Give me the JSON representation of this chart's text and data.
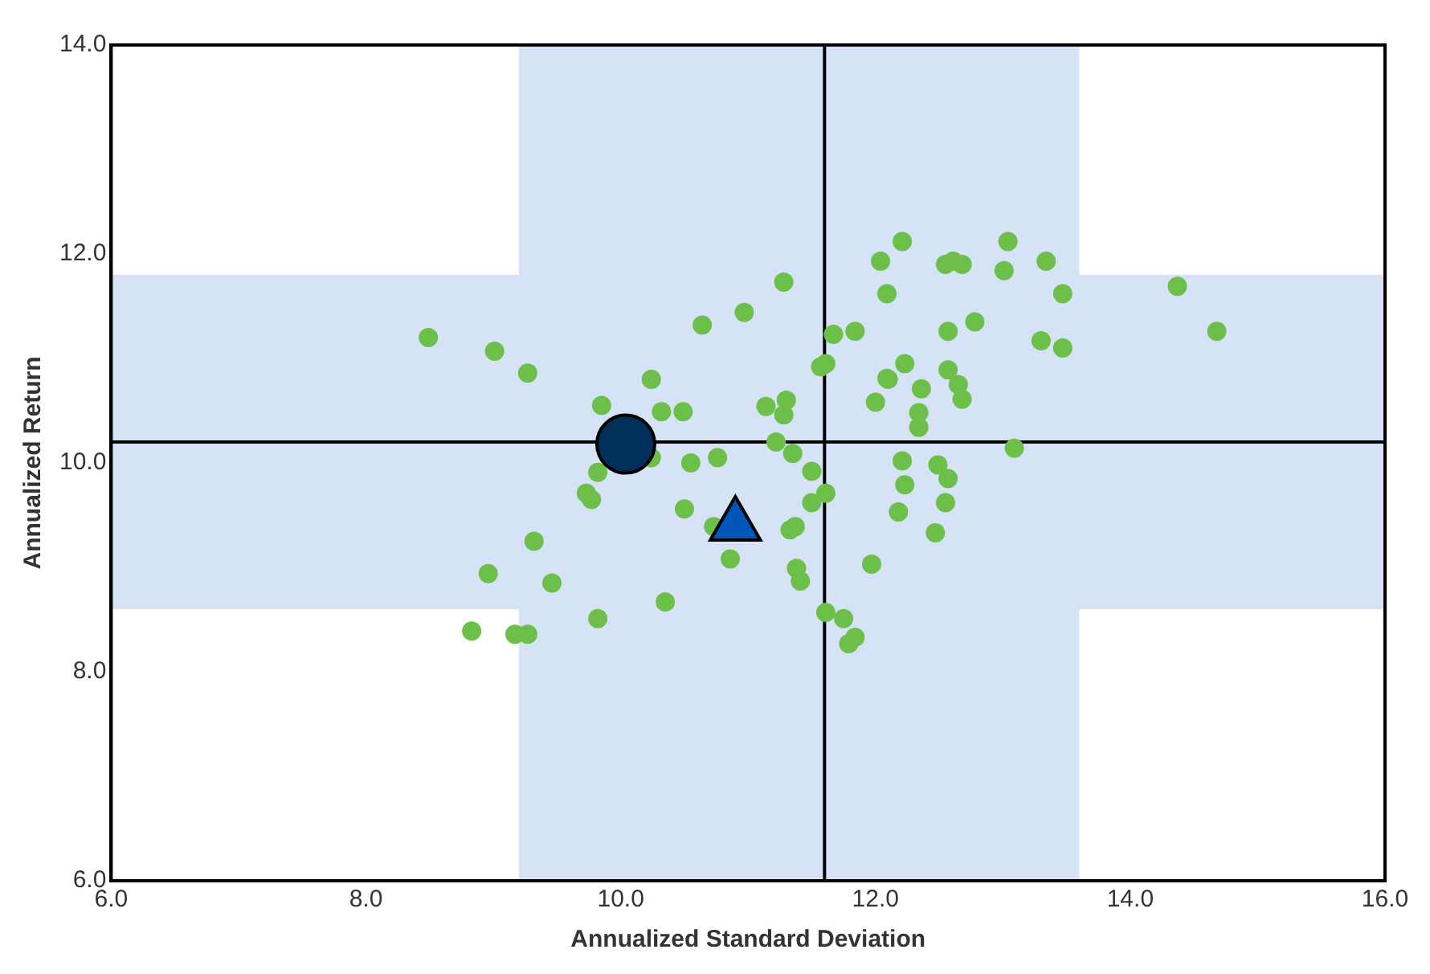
{
  "chart_data": {
    "type": "scatter",
    "xlabel": "Annualized Standard Deviation",
    "ylabel": "Annualized Return",
    "xlim": [
      6,
      16
    ],
    "xticks": [
      {
        "value": 6,
        "label": "6.0"
      },
      {
        "value": 8,
        "label": "8.0"
      },
      {
        "value": 10,
        "label": "10.0"
      },
      {
        "value": 12,
        "label": "12.0"
      },
      {
        "value": 14,
        "label": "14.0"
      },
      {
        "value": 16,
        "label": "16.0"
      }
    ],
    "ylim": [
      6,
      14
    ],
    "yticks": [
      {
        "value": 6,
        "label": "6.0"
      },
      {
        "value": 8,
        "label": "8.0"
      },
      {
        "value": 10,
        "label": "10.0"
      },
      {
        "value": 12,
        "label": "12.0"
      },
      {
        "value": 14,
        "label": "14.0"
      }
    ],
    "grid": false,
    "legend": false,
    "bands": [
      {
        "axis": "x",
        "from": 9.2,
        "to": 13.6,
        "color": "#d6e3f7"
      },
      {
        "axis": "y",
        "from": 8.6,
        "to": 11.8,
        "color": "#d6e3f7"
      }
    ],
    "ref_lines": [
      {
        "axis": "x",
        "value": 11.6,
        "color": "#000000"
      },
      {
        "axis": "y",
        "value": 10.2,
        "color": "#000000"
      }
    ],
    "series": [
      {
        "color": "#6cc04a",
        "marker": "circle",
        "x": [
          8.49,
          9.01,
          9.27,
          9.85,
          10.24,
          10.32,
          10.49,
          10.64,
          10.97,
          11.28,
          11.14,
          11.3,
          11.28,
          10.24,
          9.82,
          9.73,
          9.77,
          10.55,
          10.76,
          10.5,
          9.32,
          8.96,
          9.46,
          8.83,
          9.17,
          9.27,
          9.82,
          10.35,
          10.73,
          10.86,
          11.22,
          11.35,
          11.5,
          11.61,
          11.5,
          11.37,
          11.33,
          11.38,
          11.41,
          11.97,
          11.61,
          11.75,
          11.84,
          11.79,
          11.57,
          11.61,
          11.67,
          11.84,
          12.04,
          12.09,
          12.09,
          12.0,
          12.21,
          12.55,
          12.61,
          12.68,
          13.04,
          13.01,
          13.34,
          13.47,
          12.78,
          12.57,
          13.3,
          13.47,
          12.23,
          12.1,
          12.57,
          12.65,
          12.68,
          12.36,
          12.34,
          12.34,
          13.09,
          12.21,
          12.49,
          12.57,
          12.23,
          12.55,
          12.18,
          12.47,
          14.37,
          14.68
        ],
        "values": [
          11.2,
          11.07,
          10.86,
          10.55,
          10.8,
          10.49,
          10.49,
          11.32,
          11.44,
          11.73,
          10.54,
          10.6,
          10.46,
          10.05,
          9.91,
          9.71,
          9.65,
          10.0,
          10.05,
          9.56,
          9.25,
          8.94,
          8.85,
          8.39,
          8.36,
          8.36,
          8.51,
          8.67,
          9.39,
          9.08,
          10.2,
          10.09,
          9.92,
          9.71,
          9.62,
          9.39,
          9.36,
          8.99,
          8.87,
          9.03,
          8.57,
          8.51,
          8.33,
          8.27,
          10.92,
          10.95,
          11.23,
          11.26,
          11.93,
          11.62,
          10.81,
          10.58,
          12.12,
          11.9,
          11.93,
          11.9,
          12.12,
          11.84,
          11.93,
          11.62,
          11.35,
          11.26,
          11.17,
          11.1,
          10.95,
          10.8,
          10.89,
          10.75,
          10.61,
          10.71,
          10.48,
          10.34,
          10.14,
          10.02,
          9.98,
          9.85,
          9.79,
          9.62,
          9.53,
          9.33,
          11.69,
          11.26
        ]
      },
      {
        "color": "#00305a",
        "marker": "circle",
        "x": [
          10.04
        ],
        "values": [
          10.18
        ]
      },
      {
        "color": "#0055b8",
        "marker": "triangle",
        "x": [
          10.9
        ],
        "values": [
          9.4
        ]
      }
    ]
  }
}
